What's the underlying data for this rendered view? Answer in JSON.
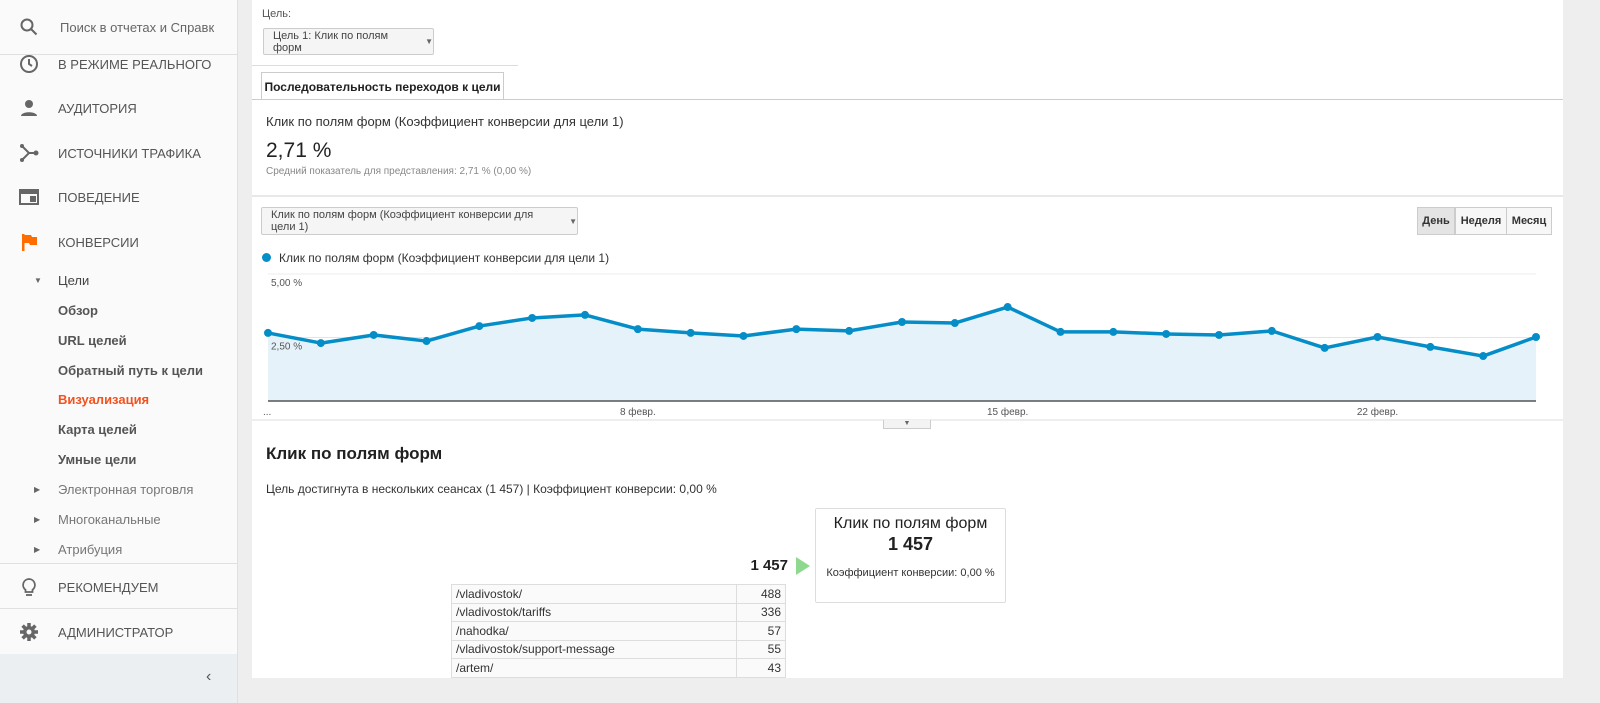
{
  "sidebar": {
    "search_placeholder": "Поиск в отчетах и Справк",
    "items": [
      {
        "label": "В режиме реального",
        "icon": "clock-icon"
      },
      {
        "label": "Аудитория",
        "icon": "person-icon"
      },
      {
        "label": "Источники трафика",
        "icon": "acquisition-icon"
      },
      {
        "label": "Поведение",
        "icon": "behavior-icon"
      },
      {
        "label": "Конверсии",
        "icon": "flag-icon"
      }
    ],
    "goals_label": "Цели",
    "goals_sub": [
      "Обзор",
      "URL целей",
      "Обратный путь к цели",
      "Визуализация",
      "Карта целей",
      "Умные цели"
    ],
    "other_sections": [
      "Электронная торговля",
      "Многоканальные",
      "Атрибуция"
    ],
    "bottom": [
      {
        "label": "Рекомендуем",
        "icon": "lightbulb-icon"
      },
      {
        "label": "Администратор",
        "icon": "gear-icon"
      }
    ],
    "active_color": "#f4511e",
    "flag_color": "#ff6d00"
  },
  "goal": {
    "label": "Цель:",
    "selected": "Цель 1: Клик по полям форм"
  },
  "tab": "Последовательность переходов к цели",
  "summary": {
    "title": "Клик по полям форм (Коэффициент конверсии для цели 1)",
    "value": "2,71 %",
    "avg": "Средний показатель для представления: 2,71 % (0,00 %)"
  },
  "metric_select": "Клик по полям форм (Коэффициент конверсии для цели 1)",
  "period_buttons": [
    "День",
    "Неделя",
    "Месяц"
  ],
  "active_period": "День",
  "chart_data": {
    "type": "area",
    "legend": "Клик по полям форм (Коэффициент конверсии для цели 1)",
    "color": "#058dc7",
    "y_ticks": [
      "5,00 %",
      "2,50 %"
    ],
    "ylim": [
      0,
      5
    ],
    "x_ticks": [
      {
        "label": "...",
        "day": 1
      },
      {
        "label": "8 февр.",
        "day": 8
      },
      {
        "label": "15 февр.",
        "day": 15
      },
      {
        "label": "22 февр.",
        "day": 22
      }
    ],
    "x_days": [
      1,
      2,
      3,
      4,
      5,
      6,
      7,
      8,
      9,
      10,
      11,
      12,
      13,
      14,
      15,
      16,
      17,
      18,
      19,
      20,
      21,
      22,
      23,
      24,
      25
    ],
    "values": [
      2.68,
      2.28,
      2.6,
      2.36,
      2.95,
      3.27,
      3.39,
      2.83,
      2.68,
      2.56,
      2.83,
      2.76,
      3.11,
      3.07,
      3.7,
      2.72,
      2.72,
      2.64,
      2.6,
      2.76,
      2.09,
      2.52,
      2.13,
      1.77,
      2.52
    ]
  },
  "flow": {
    "title": "Клик по полям форм",
    "subtitle": "Цель достигнута в нескольких сеансах (1 457) | Коэффициент конверсии: 0,00 %",
    "incoming": "1 457",
    "box_title": "Клик по полям форм",
    "box_value": "1 457",
    "box_rate": "Коэффициент конверсии: 0,00 %",
    "arrow_color": "#8ed98e",
    "pages": [
      {
        "path": "/vladivostok/",
        "count": "488"
      },
      {
        "path": "/vladivostok/tariffs",
        "count": "336"
      },
      {
        "path": "/nahodka/",
        "count": "57"
      },
      {
        "path": "/vladivostok/support-message",
        "count": "55"
      },
      {
        "path": "/artem/",
        "count": "43"
      }
    ]
  }
}
